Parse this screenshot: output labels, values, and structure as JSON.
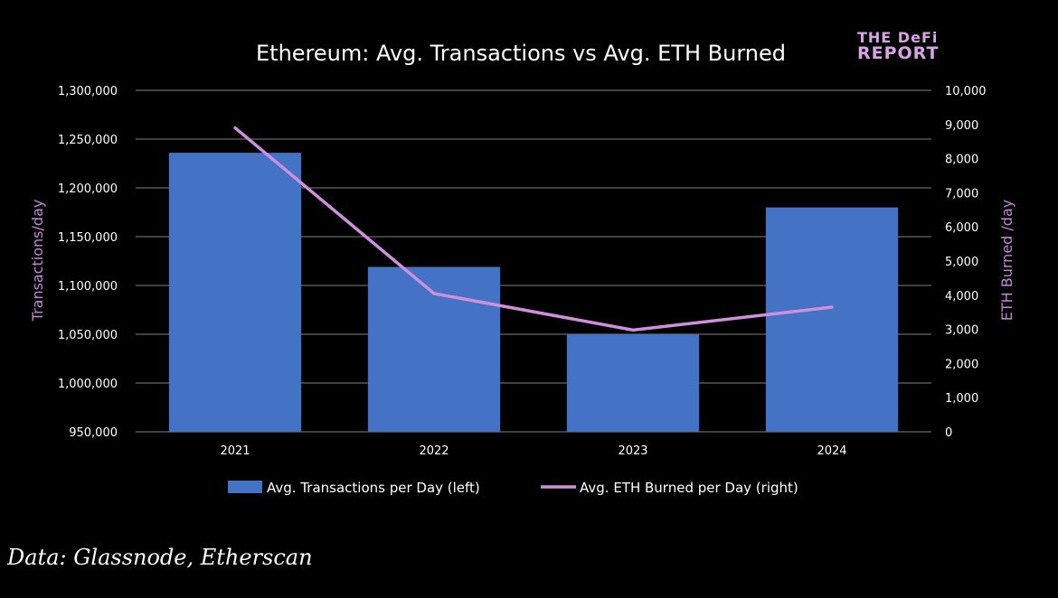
{
  "logo": {
    "line1": "THE DeFi",
    "line2": "REPORT"
  },
  "source": "Data: Glassnode, Etherscan",
  "colors": {
    "bar": "#4472c4",
    "line": "#cf8fde",
    "axis_label": "#c586d8",
    "grid": "#808080",
    "background": "#000000"
  },
  "chart_data": {
    "type": "bar",
    "title": "Ethereum: Avg. Transactions vs Avg. ETH Burned",
    "categories": [
      "2021",
      "2022",
      "2023",
      "2024"
    ],
    "y_left": {
      "label": "Transactions/day",
      "ylim": [
        950000,
        1300000
      ],
      "ticks": [
        950000,
        1000000,
        1050000,
        1100000,
        1150000,
        1200000,
        1250000,
        1300000
      ],
      "tick_labels": [
        "950,000",
        "1,000,000",
        "1,050,000",
        "1,100,000",
        "1,150,000",
        "1,200,000",
        "1,250,000",
        "1,300,000"
      ]
    },
    "y_right": {
      "label": "ETH Burned /day",
      "ylim": [
        0,
        10000
      ],
      "ticks": [
        0,
        1000,
        2000,
        3000,
        4000,
        5000,
        6000,
        7000,
        8000,
        9000,
        10000
      ],
      "tick_labels": [
        "0",
        "1,000",
        "2,000",
        "3,000",
        "4,000",
        "5,000",
        "6,000",
        "7,000",
        "8,000",
        "9,000",
        "10,000"
      ]
    },
    "series": [
      {
        "name": "Avg. Transactions per Day (left)",
        "type": "bar",
        "axis": "left",
        "values": [
          1236000,
          1119000,
          1050000,
          1180000
        ]
      },
      {
        "name": "Avg. ETH Burned per Day (right)",
        "type": "line",
        "axis": "right",
        "values": [
          8900,
          4050,
          2980,
          3650
        ]
      }
    ],
    "grid": true,
    "legend": "bottom"
  }
}
